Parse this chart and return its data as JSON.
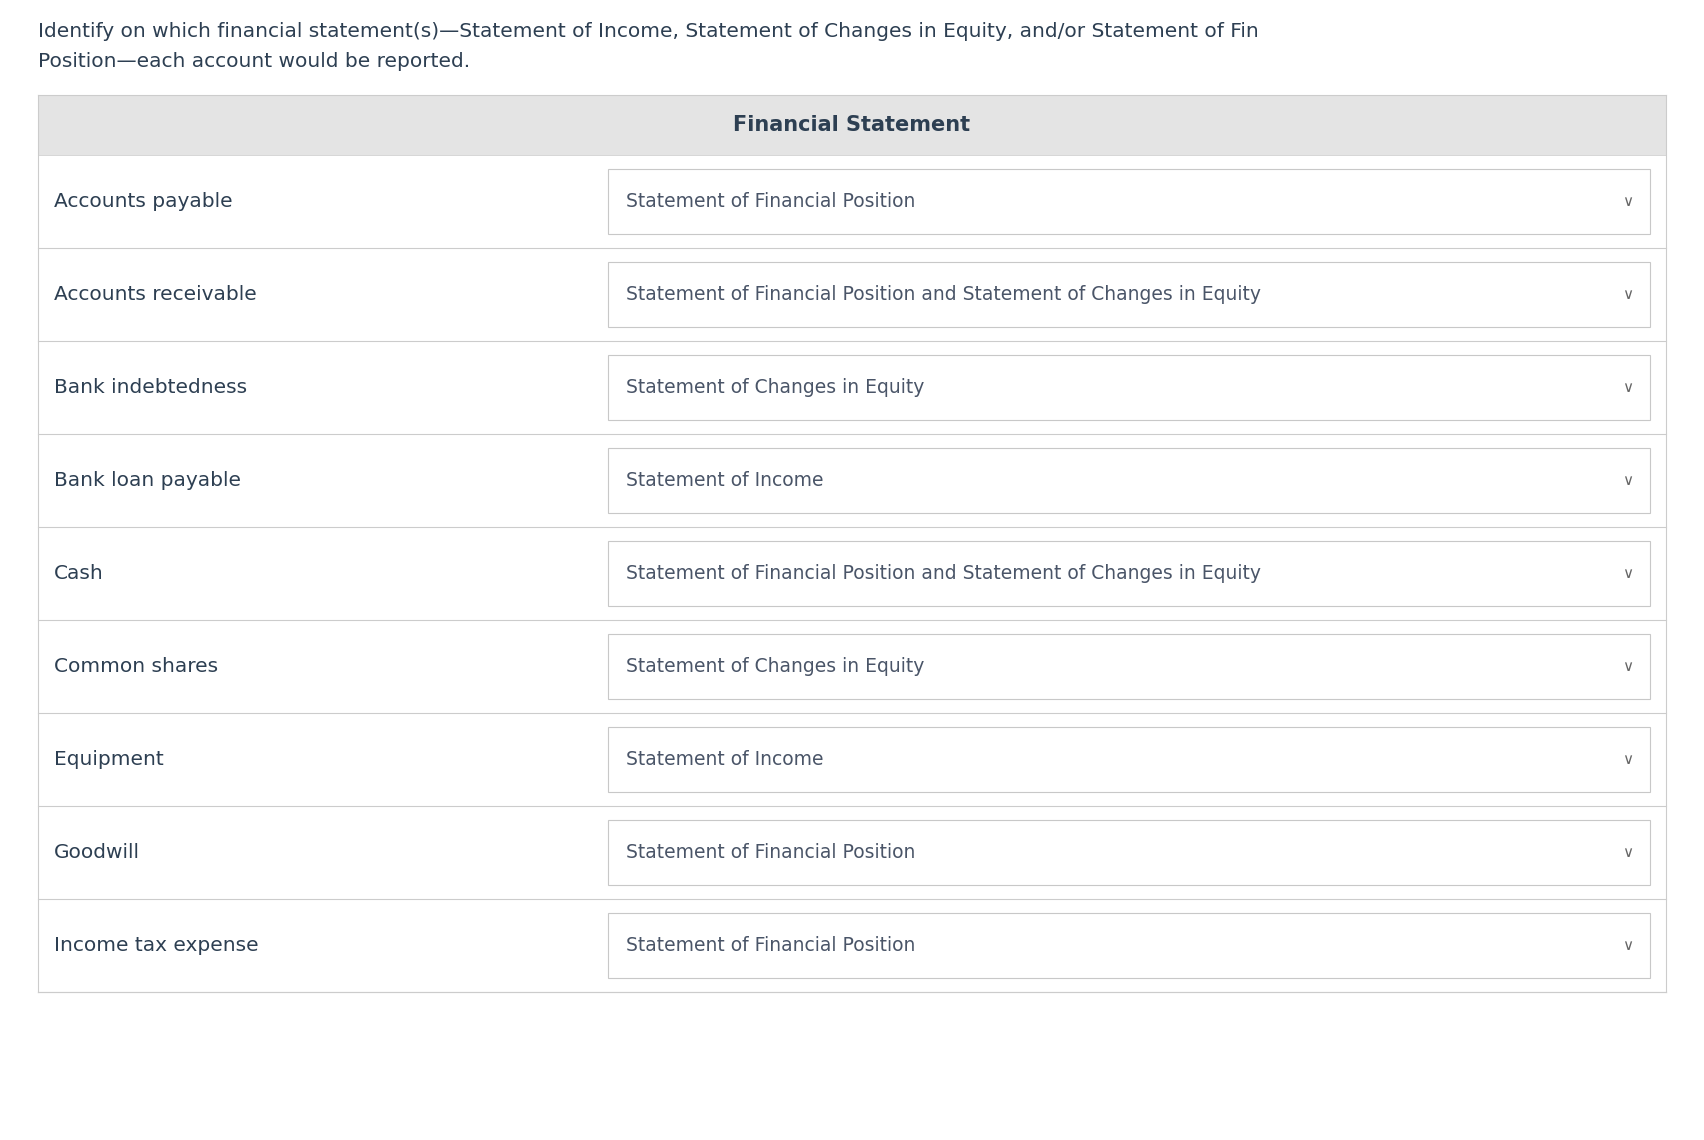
{
  "title_line1": "Identify on which financial statement(s)—Statement of Income, Statement of Changes in Equity, and/or Statement of Fin",
  "title_line2": "Position—each account would be reported.",
  "header_text": "Financial Statement",
  "header_bg": "#e4e4e4",
  "header_text_color": "#2d3f52",
  "bg_color": "#ffffff",
  "row_bg": "#ffffff",
  "border_color": "#cccccc",
  "dropdown_border": "#c8c8c8",
  "account_color": "#2d3f52",
  "dropdown_text_color": "#4a5568",
  "rows": [
    {
      "account": "Accounts payable",
      "statement": "Statement of Financial Position"
    },
    {
      "account": "Accounts receivable",
      "statement": "Statement of Financial Position and Statement of Changes in Equity"
    },
    {
      "account": "Bank indebtedness",
      "statement": "Statement of Changes in Equity"
    },
    {
      "account": "Bank loan payable",
      "statement": "Statement of Income"
    },
    {
      "account": "Cash",
      "statement": "Statement of Financial Position and Statement of Changes in Equity"
    },
    {
      "account": "Common shares",
      "statement": "Statement of Changes in Equity"
    },
    {
      "account": "Equipment",
      "statement": "Statement of Income"
    },
    {
      "account": "Goodwill",
      "statement": "Statement of Financial Position"
    },
    {
      "account": "Income tax expense",
      "statement": "Statement of Financial Position"
    }
  ],
  "title_fontsize": 14.5,
  "header_fontsize": 15,
  "account_fontsize": 14.5,
  "dropdown_fontsize": 13.5,
  "chevron_fontsize": 11
}
